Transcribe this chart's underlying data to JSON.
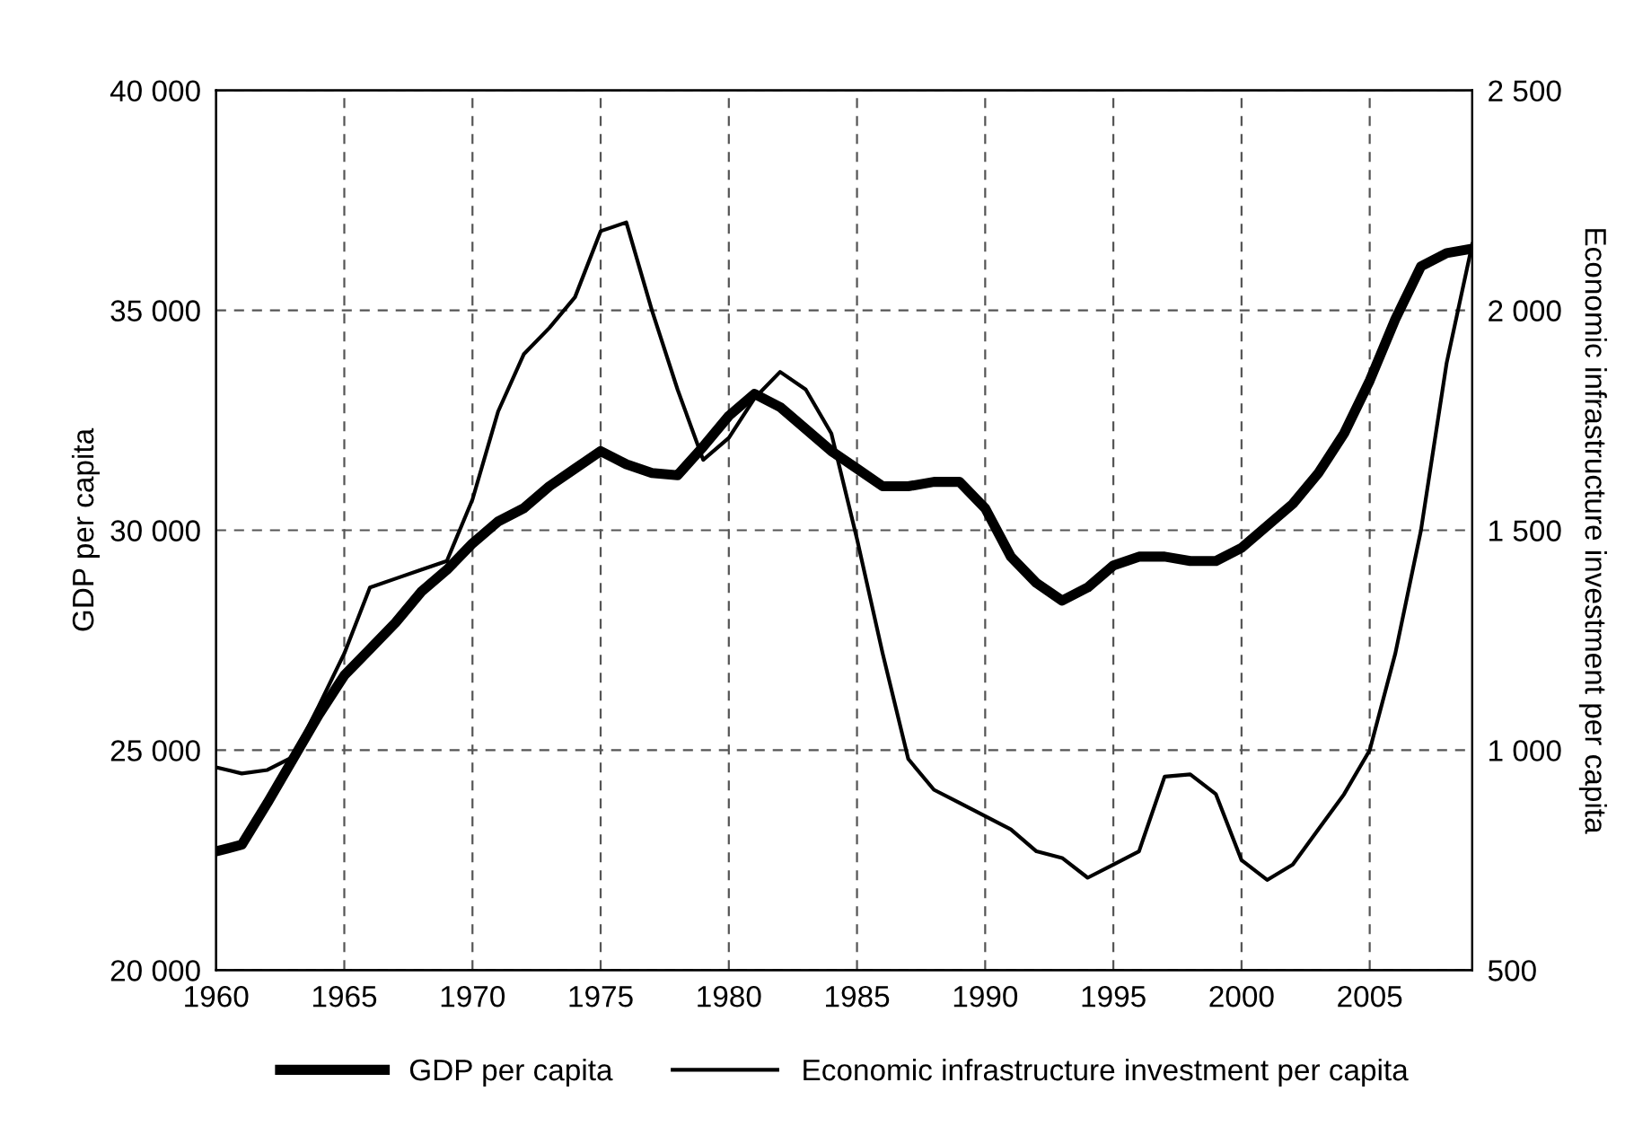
{
  "chart_data": {
    "type": "line",
    "ylabel": "GDP per capita",
    "y2label": "Economic infrastructure investment per capita",
    "x": [
      1960,
      1961,
      1962,
      1963,
      1964,
      1965,
      1966,
      1967,
      1968,
      1969,
      1970,
      1971,
      1972,
      1973,
      1974,
      1975,
      1976,
      1977,
      1978,
      1979,
      1980,
      1981,
      1982,
      1983,
      1984,
      1985,
      1986,
      1987,
      1988,
      1989,
      1990,
      1991,
      1992,
      1993,
      1994,
      1995,
      1996,
      1997,
      1998,
      1999,
      2000,
      2001,
      2002,
      2003,
      2004,
      2005,
      2006,
      2007,
      2008,
      2009
    ],
    "series": [
      {
        "name": "GDP per capita",
        "color": "#000000",
        "values": [
          22700,
          22850,
          23800,
          24800,
          25800,
          26700,
          27300,
          27900,
          28600,
          29100,
          29700,
          30200,
          30500,
          31000,
          31400,
          31800,
          31500,
          31300,
          31250,
          31900,
          32600,
          33100,
          32800,
          32300,
          31800,
          31400,
          31000,
          31000,
          31100,
          31100,
          30500,
          29400,
          28800,
          28400,
          28700,
          29200,
          29400,
          29400,
          29300,
          29300,
          29600,
          30100,
          30600,
          31300,
          32200,
          33400,
          34800,
          36000,
          36300,
          36400
        ]
      },
      {
        "name": "Economic infrastructure investment per capita",
        "color": "#000000",
        "axis": "y2",
        "values": [
          961,
          947,
          955,
          985,
          1100,
          1220,
          1370,
          1390,
          1410,
          1430,
          1570,
          1770,
          1900,
          1960,
          2030,
          2180,
          2200,
          2000,
          1820,
          1660,
          1710,
          1800,
          1860,
          1820,
          1720,
          1480,
          1220,
          980,
          910,
          880,
          850,
          820,
          770,
          755,
          710,
          740,
          770,
          940,
          945,
          900,
          750,
          705,
          740,
          820,
          900,
          1000,
          1220,
          1500,
          1880,
          2150
        ]
      }
    ],
    "xlim": [
      1960,
      2009
    ],
    "xticks": [
      1960,
      1965,
      1970,
      1975,
      1980,
      1985,
      1990,
      1995,
      2000,
      2005
    ],
    "ylim": [
      20000,
      40000
    ],
    "yticks": [
      {
        "value": 20000,
        "label": "20 000"
      },
      {
        "value": 25000,
        "label": "25 000"
      },
      {
        "value": 30000,
        "label": "30 000"
      },
      {
        "value": 35000,
        "label": "35 000"
      },
      {
        "value": 40000,
        "label": "40 000"
      }
    ],
    "y2lim": [
      500,
      2500
    ],
    "y2ticks": [
      500,
      {
        "value": 1000,
        "label": "1 000"
      },
      {
        "value": 1500,
        "label": "1 500"
      },
      {
        "value": 2000,
        "label": "2 000"
      },
      {
        "value": 2500,
        "label": "2 500"
      }
    ],
    "grid": true,
    "legend": "bottom",
    "marker": "none",
    "line_style": "solid"
  }
}
